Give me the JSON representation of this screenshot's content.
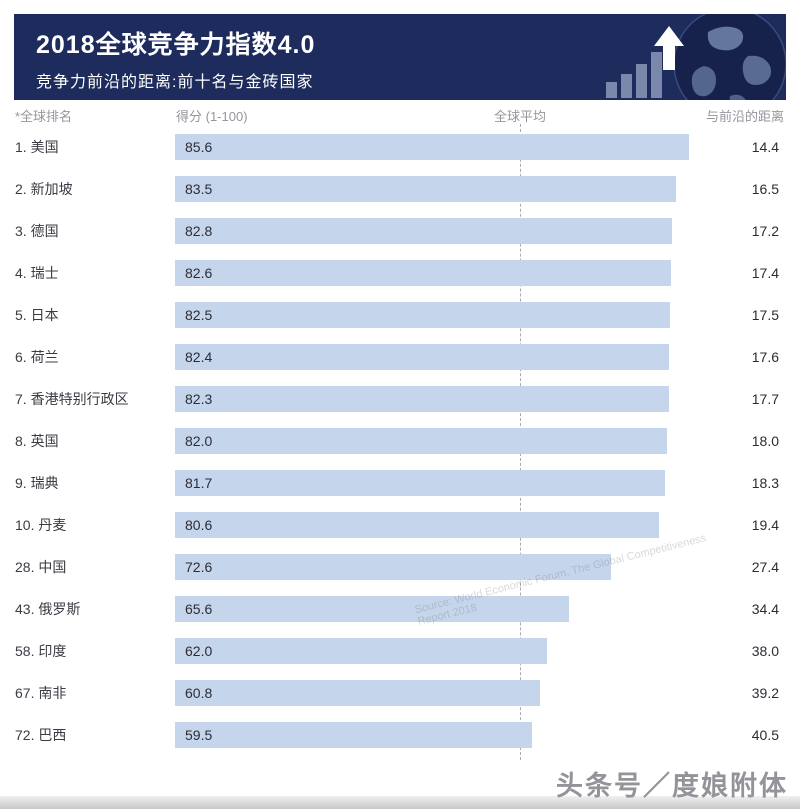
{
  "header": {
    "title": "2018全球竞争力指数4.0",
    "subtitle": "竞争力前沿的距离:前十名与金砖国家"
  },
  "columns": {
    "rank": "*全球排名",
    "score": "得分 (1-100)",
    "average": "全球平均",
    "distance": "与前沿的距离"
  },
  "rows": [
    {
      "label": "1. 美国",
      "score": "85.6",
      "distance": "14.4",
      "value": 85.6
    },
    {
      "label": "2. 新加坡",
      "score": "83.5",
      "distance": "16.5",
      "value": 83.5
    },
    {
      "label": "3. 德国",
      "score": "82.8",
      "distance": "17.2",
      "value": 82.8
    },
    {
      "label": "4. 瑞士",
      "score": "82.6",
      "distance": "17.4",
      "value": 82.6
    },
    {
      "label": "5. 日本",
      "score": "82.5",
      "distance": "17.5",
      "value": 82.5
    },
    {
      "label": "6. 荷兰",
      "score": "82.4",
      "distance": "17.6",
      "value": 82.4
    },
    {
      "label": "7. 香港特别行政区",
      "score": "82.3",
      "distance": "17.7",
      "value": 82.3
    },
    {
      "label": "8. 英国",
      "score": "82.0",
      "distance": "18.0",
      "value": 82.0
    },
    {
      "label": "9. 瑞典",
      "score": "81.7",
      "distance": "18.3",
      "value": 81.7
    },
    {
      "label": "10. 丹麦",
      "score": "80.6",
      "distance": "19.4",
      "value": 80.6
    },
    {
      "label": "28. 中国",
      "score": "72.6",
      "distance": "27.4",
      "value": 72.6
    },
    {
      "label": "43. 俄罗斯",
      "score": "65.6",
      "distance": "34.4",
      "value": 65.6
    },
    {
      "label": "58. 印度",
      "score": "62.0",
      "distance": "38.0",
      "value": 62.0
    },
    {
      "label": "67. 南非",
      "score": "60.8",
      "distance": "39.2",
      "value": 60.8
    },
    {
      "label": "72. 巴西",
      "score": "59.5",
      "distance": "40.5",
      "value": 59.5
    }
  ],
  "chart_data": {
    "type": "bar",
    "orientation": "horizontal",
    "title": "2018全球竞争力指数4.0",
    "subtitle": "竞争力前沿的距离:前十名与金砖国家",
    "categories": [
      "1. 美国",
      "2. 新加坡",
      "3. 德国",
      "4. 瑞士",
      "5. 日本",
      "6. 荷兰",
      "7. 香港特别行政区",
      "8. 英国",
      "9. 瑞典",
      "10. 丹麦",
      "28. 中国",
      "43. 俄罗斯",
      "58. 印度",
      "67. 南非",
      "72. 巴西"
    ],
    "series": [
      {
        "name": "得分 (1-100)",
        "values": [
          85.6,
          83.5,
          82.8,
          82.6,
          82.5,
          82.4,
          82.3,
          82.0,
          81.7,
          80.6,
          72.6,
          65.6,
          62.0,
          60.8,
          59.5
        ]
      },
      {
        "name": "与前沿的距离",
        "values": [
          14.4,
          16.5,
          17.2,
          17.4,
          17.5,
          17.6,
          17.7,
          18.0,
          18.3,
          19.4,
          27.4,
          34.4,
          38.0,
          39.2,
          40.5
        ]
      }
    ],
    "xlim": [
      0,
      100
    ],
    "reference_line": {
      "label": "全球平均",
      "value": 57.5
    },
    "legend": false,
    "grid": false,
    "bar_color": "#c5d6ec"
  },
  "watermark": {
    "source": "Source: World Economic Forum, The Global Competitiveness Report 2018",
    "brand": "头条号／度娘附体"
  },
  "colors": {
    "header_bg": "#1d2b5d",
    "bar_fill": "#c5d6ec",
    "label_text": "#3b3b44",
    "column_header_text": "#95959d",
    "reference_line": "#a9a9b0"
  }
}
